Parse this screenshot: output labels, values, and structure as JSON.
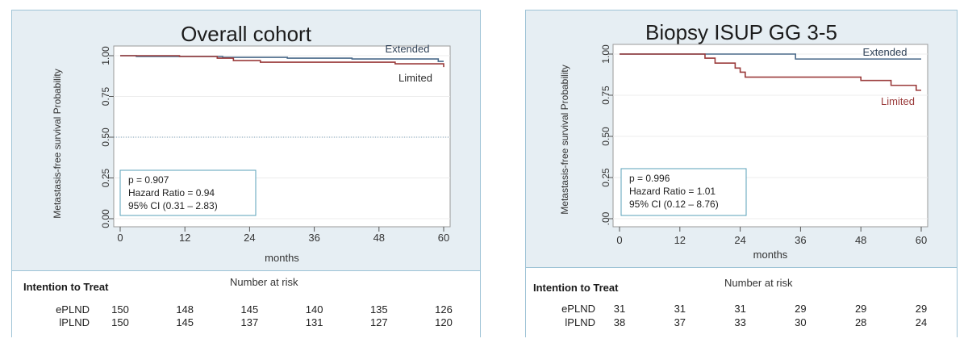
{
  "chart_data": [
    {
      "type": "line",
      "title": "Overall cohort",
      "ylabel": "Metastasis-free survival Probability",
      "xlabel": "months",
      "xlim": [
        0,
        60
      ],
      "ylim": [
        0,
        1
      ],
      "x_ticks": [
        0,
        12,
        24,
        36,
        48,
        60
      ],
      "y_ticks": [
        "0.00",
        "0.25",
        "0.50",
        "0.75",
        "1.00"
      ],
      "reference_line_y": 0.5,
      "series": [
        {
          "name": "Extended",
          "color": "#4a6a8a",
          "points": [
            [
              0,
              1.0
            ],
            [
              3,
              0.995
            ],
            [
              18,
              0.995
            ],
            [
              19,
              0.99
            ],
            [
              30,
              0.99
            ],
            [
              31,
              0.985
            ],
            [
              42,
              0.985
            ],
            [
              43,
              0.98
            ],
            [
              58,
              0.98
            ],
            [
              59,
              0.965
            ],
            [
              60,
              0.965
            ]
          ]
        },
        {
          "name": "Limited",
          "color": "#9a3a3a",
          "points": [
            [
              0,
              1.0
            ],
            [
              10,
              1.0
            ],
            [
              11,
              0.995
            ],
            [
              17,
              0.995
            ],
            [
              18,
              0.985
            ],
            [
              20,
              0.985
            ],
            [
              21,
              0.97
            ],
            [
              25,
              0.97
            ],
            [
              26,
              0.96
            ],
            [
              50,
              0.96
            ],
            [
              51,
              0.95
            ],
            [
              59,
              0.95
            ],
            [
              60,
              0.93
            ]
          ]
        }
      ],
      "stats": {
        "p": "p = 0.907",
        "hr": "Hazard Ratio = 0.94",
        "ci": "95% CI (0.31 – 2.83)"
      },
      "risk_table": {
        "heading": "Intention to Treat",
        "caption": "Number at risk",
        "rows": [
          {
            "label": "ePLND",
            "values": [
              "150",
              "148",
              "145",
              "140",
              "135",
              "126"
            ]
          },
          {
            "label": "lPLND",
            "values": [
              "150",
              "145",
              "137",
              "131",
              "127",
              "120"
            ]
          }
        ]
      }
    },
    {
      "type": "line",
      "title": "Biopsy ISUP GG 3-5",
      "ylabel": "Metastasis-free survival Probability",
      "xlabel": "months",
      "xlim": [
        0,
        60
      ],
      "ylim": [
        0,
        1
      ],
      "x_ticks": [
        0,
        12,
        24,
        36,
        48,
        60
      ],
      "y_ticks": [
        ".00",
        "0.25",
        "0.50",
        "0.75",
        "1.00"
      ],
      "reference_line_y": null,
      "series": [
        {
          "name": "Extended",
          "color": "#4a6a8a",
          "points": [
            [
              0,
              1.0
            ],
            [
              35,
              1.0
            ],
            [
              35,
              0.97
            ],
            [
              60,
              0.97
            ]
          ]
        },
        {
          "name": "Limited",
          "color": "#9a3a3a",
          "points": [
            [
              0,
              1.0
            ],
            [
              17,
              1.0
            ],
            [
              17,
              0.975
            ],
            [
              19,
              0.975
            ],
            [
              19,
              0.945
            ],
            [
              23,
              0.945
            ],
            [
              23,
              0.915
            ],
            [
              24,
              0.915
            ],
            [
              24,
              0.89
            ],
            [
              25,
              0.89
            ],
            [
              25,
              0.86
            ],
            [
              48,
              0.86
            ],
            [
              48,
              0.84
            ],
            [
              54,
              0.84
            ],
            [
              54,
              0.81
            ],
            [
              59,
              0.81
            ],
            [
              59,
              0.78
            ],
            [
              60,
              0.78
            ]
          ]
        }
      ],
      "stats": {
        "p": "p = 0.996",
        "hr": "Hazard Ratio = 1.01",
        "ci": "95% CI (0.12 – 8.76)"
      },
      "risk_table": {
        "heading": "Intention to Treat",
        "caption": "Number at risk",
        "rows": [
          {
            "label": "ePLND",
            "values": [
              "31",
              "31",
              "31",
              "29",
              "29",
              "29"
            ]
          },
          {
            "label": "lPLND",
            "values": [
              "38",
              "37",
              "33",
              "30",
              "28",
              "24"
            ]
          }
        ]
      }
    }
  ]
}
